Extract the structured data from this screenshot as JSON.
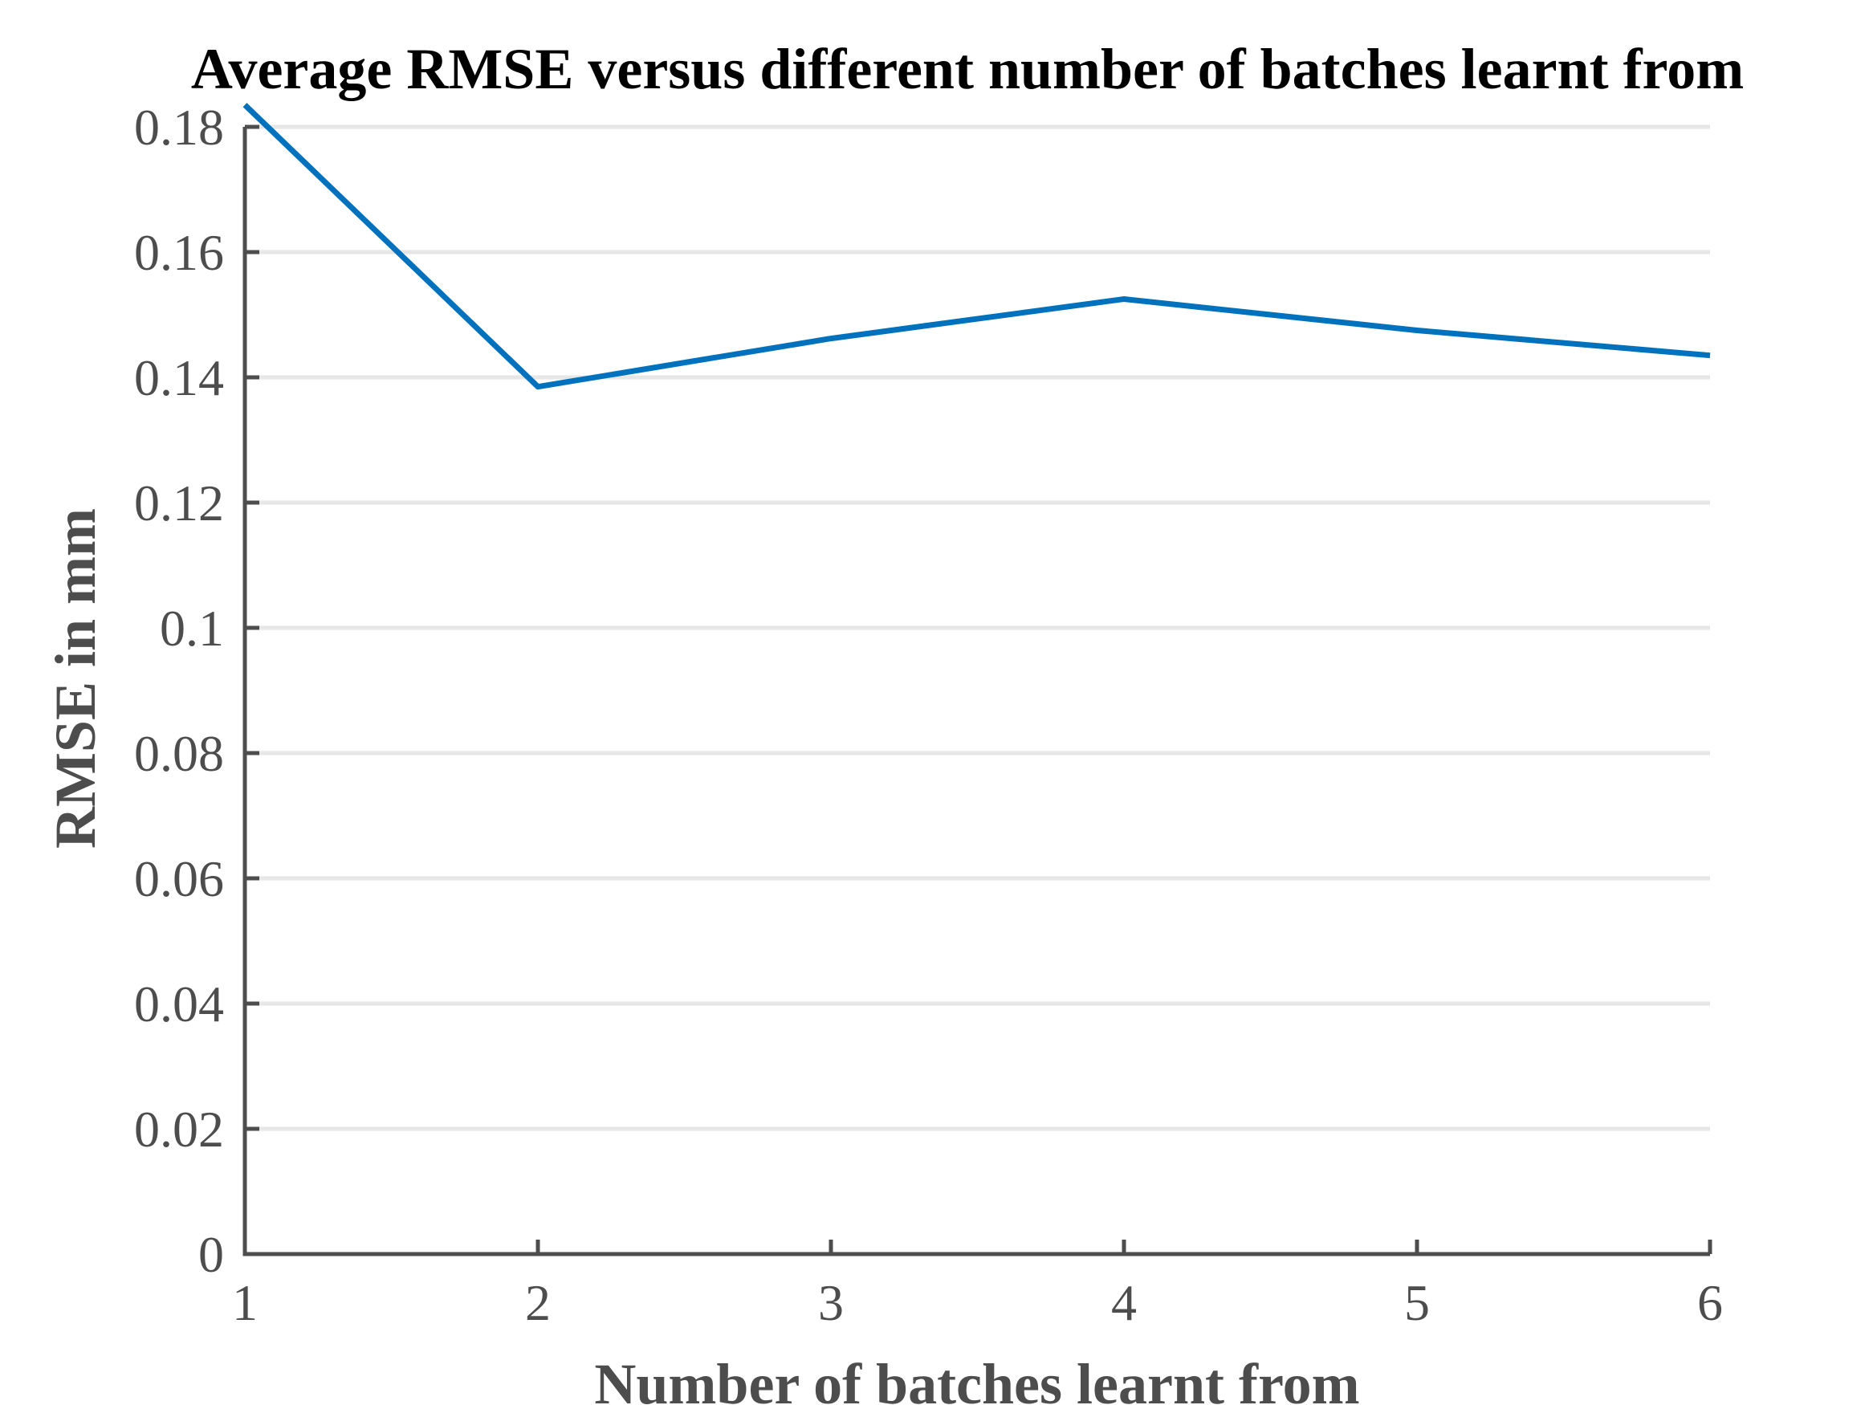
{
  "chart_data": {
    "type": "line",
    "title": "Average RMSE versus different number of batches learnt from",
    "xlabel": "Number of batches learnt from",
    "ylabel": "RMSE in mm",
    "x": [
      1,
      2,
      3,
      4,
      5,
      6
    ],
    "series": [
      {
        "name": "Average RMSE",
        "values": [
          0.1835,
          0.1385,
          0.1462,
          0.1525,
          0.1475,
          0.1435
        ],
        "color": "#0072bd"
      }
    ],
    "xlim": [
      1,
      6
    ],
    "ylim": [
      0,
      0.18
    ],
    "xticks": [
      1,
      2,
      3,
      4,
      5,
      6
    ],
    "xtick_labels": [
      "1",
      "2",
      "3",
      "4",
      "5",
      "6"
    ],
    "yticks": [
      0,
      0.02,
      0.04,
      0.06,
      0.08,
      0.1,
      0.12,
      0.14,
      0.16,
      0.18
    ],
    "ytick_labels": [
      "0",
      "0.02",
      "0.04",
      "0.06",
      "0.08",
      "0.1",
      "0.12",
      "0.14",
      "0.16",
      "0.18"
    ],
    "grid": "horizontal",
    "legend": "none"
  }
}
